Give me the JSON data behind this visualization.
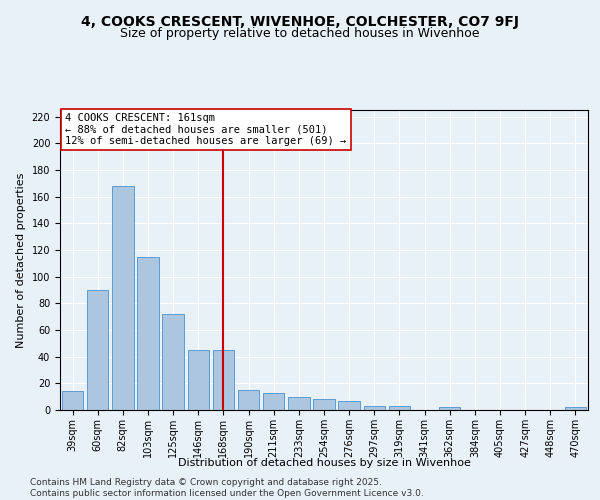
{
  "title1": "4, COOKS CRESCENT, WIVENHOE, COLCHESTER, CO7 9FJ",
  "title2": "Size of property relative to detached houses in Wivenhoe",
  "xlabel": "Distribution of detached houses by size in Wivenhoe",
  "ylabel": "Number of detached properties",
  "categories": [
    "39sqm",
    "60sqm",
    "82sqm",
    "103sqm",
    "125sqm",
    "146sqm",
    "168sqm",
    "190sqm",
    "211sqm",
    "233sqm",
    "254sqm",
    "276sqm",
    "297sqm",
    "319sqm",
    "341sqm",
    "362sqm",
    "384sqm",
    "405sqm",
    "427sqm",
    "448sqm",
    "470sqm"
  ],
  "values": [
    14,
    90,
    168,
    115,
    72,
    45,
    45,
    15,
    13,
    10,
    8,
    7,
    3,
    3,
    0,
    2,
    0,
    0,
    0,
    0,
    2
  ],
  "bar_color": "#adc6e0",
  "bar_edge_color": "#5b9bd5",
  "vline_x": 6,
  "vline_color": "#cc0000",
  "annotation_line1": "4 COOKS CRESCENT: 161sqm",
  "annotation_line2": "← 88% of detached houses are smaller (501)",
  "annotation_line3": "12% of semi-detached houses are larger (69) →",
  "annotation_box_color": "#ffffff",
  "annotation_box_edge": "#cc0000",
  "ylim": [
    0,
    225
  ],
  "yticks": [
    0,
    20,
    40,
    60,
    80,
    100,
    120,
    140,
    160,
    180,
    200,
    220
  ],
  "footer1": "Contains HM Land Registry data © Crown copyright and database right 2025.",
  "footer2": "Contains public sector information licensed under the Open Government Licence v3.0.",
  "bg_color": "#e8f0f8",
  "plot_bg_color": "#e8f0f8",
  "title_fontsize": 10,
  "subtitle_fontsize": 9,
  "axis_label_fontsize": 8,
  "tick_fontsize": 7,
  "annotation_fontsize": 7.5,
  "footer_fontsize": 6.5
}
